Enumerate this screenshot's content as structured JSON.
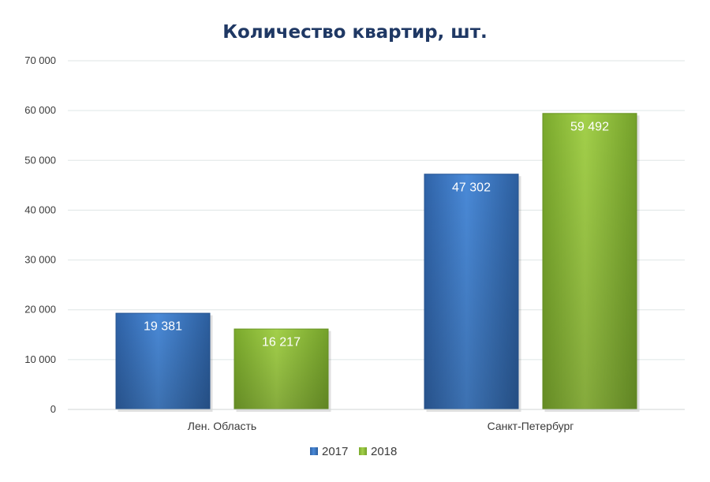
{
  "chart_data": {
    "type": "bar",
    "title": "Количество квартир, шт.",
    "categories": [
      "Лен. Область",
      "Санкт-Петербург"
    ],
    "series": [
      {
        "name": "2017",
        "values": [
          19381,
          47302
        ],
        "labels": [
          "19 381",
          "47 302"
        ],
        "color": "#3b78c8"
      },
      {
        "name": "2018",
        "values": [
          16217,
          59492
        ],
        "labels": [
          "16 217",
          "59 492"
        ],
        "color": "#8fbf3a"
      }
    ],
    "ylim": [
      0,
      70000
    ],
    "yticks": [
      0,
      10000,
      20000,
      30000,
      40000,
      50000,
      60000,
      70000
    ],
    "ytick_labels": [
      "0",
      "10 000",
      "20 000",
      "30 000",
      "40 000",
      "50 000",
      "60 000",
      "70 000"
    ],
    "xlabel": "",
    "ylabel": "",
    "grid": true,
    "legend_position": "bottom"
  }
}
